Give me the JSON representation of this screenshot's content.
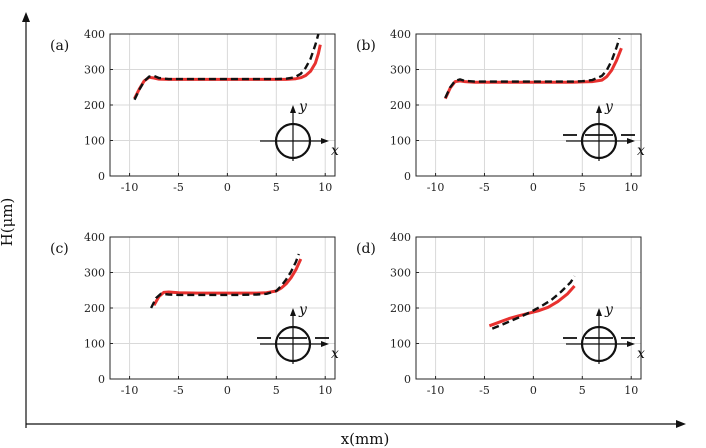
{
  "figure": {
    "xlabel": "x(mm)",
    "ylabel": "H(μm)"
  },
  "colors": {
    "solid": "#e8312f",
    "dashed": "#111111"
  },
  "chart_data": [
    {
      "type": "line",
      "panel_label": "(a)",
      "xlim": [
        -12,
        11
      ],
      "ylim": [
        0,
        400
      ],
      "xticks": [
        -10,
        -5,
        0,
        5,
        10
      ],
      "yticks": [
        0,
        100,
        200,
        300,
        400
      ],
      "grid": true,
      "inset": {
        "x_label": "x",
        "y_label": "y",
        "chord": false
      },
      "series": [
        {
          "style": "solid",
          "x": [
            -9.5,
            -9,
            -8.5,
            -8,
            -7.5,
            -7,
            -6,
            -4,
            -2,
            0,
            2,
            4,
            5,
            6,
            7,
            7.5,
            8,
            8.5,
            9,
            9.3,
            9.5
          ],
          "y": [
            218,
            245,
            268,
            278,
            276,
            273,
            272,
            272,
            272,
            272,
            272,
            272,
            272,
            272,
            274,
            277,
            283,
            295,
            318,
            345,
            370
          ]
        },
        {
          "style": "dashed",
          "x": [
            -9.5,
            -9,
            -8.5,
            -8,
            -7.5,
            -7,
            -6,
            -4,
            -2,
            0,
            2,
            4,
            5,
            6,
            6.5,
            7,
            7.5,
            8,
            8.5,
            9,
            9.3
          ],
          "y": [
            215,
            243,
            267,
            280,
            282,
            276,
            273,
            273,
            273,
            273,
            273,
            273,
            273,
            274,
            276,
            280,
            288,
            305,
            330,
            370,
            400
          ]
        }
      ]
    },
    {
      "type": "line",
      "panel_label": "(b)",
      "xlim": [
        -12,
        11
      ],
      "ylim": [
        0,
        400
      ],
      "xticks": [
        -10,
        -5,
        0,
        5,
        10
      ],
      "yticks": [
        0,
        100,
        200,
        300,
        400
      ],
      "grid": true,
      "inset": {
        "x_label": "x",
        "y_label": "y",
        "chord": true
      },
      "series": [
        {
          "style": "solid",
          "x": [
            -9,
            -8.5,
            -8,
            -7.5,
            -7,
            -6,
            -4,
            -2,
            0,
            2,
            4,
            5,
            6,
            7,
            7.5,
            8,
            8.5,
            9
          ],
          "y": [
            218,
            248,
            266,
            268,
            266,
            264,
            264,
            264,
            264,
            264,
            264,
            265,
            266,
            270,
            280,
            298,
            325,
            360
          ]
        },
        {
          "style": "dashed",
          "x": [
            -9,
            -8.5,
            -8,
            -7.5,
            -7,
            -6,
            -4,
            -2,
            0,
            2,
            4,
            5,
            6,
            7,
            7.5,
            8,
            8.5,
            8.8
          ],
          "y": [
            220,
            250,
            268,
            272,
            268,
            266,
            266,
            266,
            266,
            266,
            266,
            267,
            270,
            282,
            298,
            325,
            362,
            388
          ]
        }
      ]
    },
    {
      "type": "line",
      "panel_label": "(c)",
      "xlim": [
        -12,
        11
      ],
      "ylim": [
        0,
        400
      ],
      "xticks": [
        -10,
        -5,
        0,
        5,
        10
      ],
      "yticks": [
        0,
        100,
        200,
        300,
        400
      ],
      "grid": true,
      "inset": {
        "x_label": "x",
        "y_label": "y",
        "chord": true
      },
      "series": [
        {
          "style": "solid",
          "x": [
            -7.5,
            -7,
            -6.5,
            -6,
            -5,
            -3,
            -1,
            1,
            3,
            4,
            5,
            5.5,
            6,
            6.5,
            7,
            7.5
          ],
          "y": [
            208,
            232,
            244,
            245,
            243,
            242,
            242,
            242,
            242,
            243,
            248,
            256,
            268,
            285,
            308,
            338
          ]
        },
        {
          "style": "dashed",
          "x": [
            -7.8,
            -7.3,
            -6.8,
            -6,
            -5,
            -3,
            -1,
            1,
            3,
            4,
            5,
            5.5,
            6,
            6.5,
            7,
            7.3
          ],
          "y": [
            200,
            228,
            240,
            238,
            237,
            237,
            237,
            237,
            238,
            240,
            248,
            262,
            280,
            302,
            330,
            352
          ]
        }
      ]
    },
    {
      "type": "line",
      "panel_label": "(d)",
      "xlim": [
        -12,
        11
      ],
      "ylim": [
        0,
        400
      ],
      "xticks": [
        -10,
        -5,
        0,
        5,
        10
      ],
      "yticks": [
        0,
        100,
        200,
        300,
        400
      ],
      "grid": true,
      "inset": {
        "x_label": "x",
        "y_label": "y",
        "chord": true
      },
      "series": [
        {
          "style": "solid",
          "x": [
            -4.5,
            -3.5,
            -2.5,
            -1.5,
            -0.5,
            0.5,
            1.5,
            2.5,
            3.5,
            4.2
          ],
          "y": [
            150,
            160,
            170,
            178,
            185,
            192,
            202,
            218,
            240,
            262
          ]
        },
        {
          "style": "dashed",
          "x": [
            -4.2,
            -3.2,
            -2.2,
            -1.2,
            -0.2,
            0.8,
            1.8,
            2.8,
            3.8,
            4.2
          ],
          "y": [
            142,
            153,
            165,
            177,
            190,
            205,
            222,
            245,
            272,
            290
          ]
        }
      ]
    }
  ]
}
